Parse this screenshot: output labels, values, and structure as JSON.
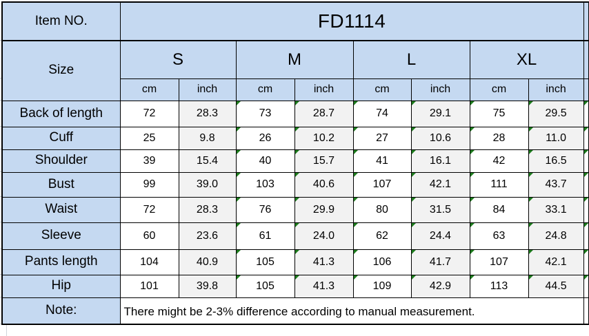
{
  "table": {
    "item_no": {
      "label": "Item NO.",
      "value": "FD1114"
    },
    "size_header": {
      "label": "Size",
      "sizes": [
        "S",
        "M",
        "L",
        "XL"
      ],
      "units": [
        "cm",
        "inch"
      ]
    },
    "measurements": [
      {
        "label": "Back of length",
        "values": [
          "72",
          "28.3",
          "73",
          "28.7",
          "74",
          "29.1",
          "75",
          "29.5"
        ]
      },
      {
        "label": "Cuff",
        "values": [
          "25",
          "9.8",
          "26",
          "10.2",
          "27",
          "10.6",
          "28",
          "11.0"
        ]
      },
      {
        "label": "Shoulder",
        "values": [
          "39",
          "15.4",
          "40",
          "15.7",
          "41",
          "16.1",
          "42",
          "16.5"
        ]
      },
      {
        "label": "Bust",
        "values": [
          "99",
          "39.0",
          "103",
          "40.6",
          "107",
          "42.1",
          "111",
          "43.7"
        ]
      },
      {
        "label": "Waist",
        "values": [
          "72",
          "28.3",
          "76",
          "29.9",
          "80",
          "31.5",
          "84",
          "33.1"
        ]
      },
      {
        "label": "Sleeve",
        "values": [
          "60",
          "23.6",
          "61",
          "24.0",
          "62",
          "24.4",
          "63",
          "24.8"
        ]
      },
      {
        "label": "Pants length",
        "values": [
          "104",
          "40.9",
          "105",
          "41.3",
          "106",
          "41.7",
          "107",
          "42.1"
        ]
      },
      {
        "label": "Hip",
        "values": [
          "101",
          "39.8",
          "105",
          "41.3",
          "109",
          "42.9",
          "113",
          "44.5"
        ]
      }
    ],
    "note": {
      "label": "Note:",
      "text": "There might be 2-3% difference according to manual measurement."
    }
  },
  "error_indicators": {
    "flagged_value_columns": [
      2,
      3,
      4,
      5,
      6,
      7
    ],
    "right_edge_flags": true
  },
  "colors": {
    "header_fill": "#C5D9F1",
    "inch_column_fill": "#F2F2F2",
    "cm_column_fill": "#FFFFFF",
    "grid_border": "#000000",
    "error_indicator_green": "#1E7D1E"
  }
}
